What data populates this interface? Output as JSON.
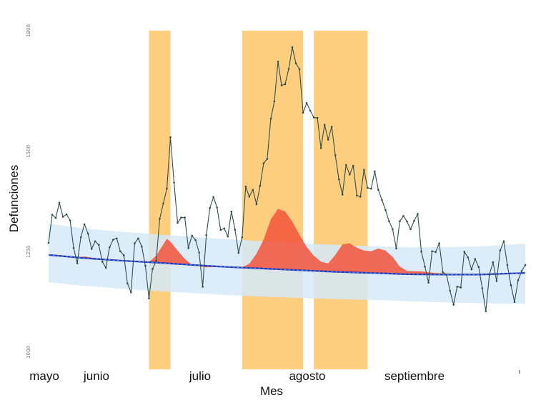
{
  "chart_data": {
    "type": "line",
    "title": "",
    "xlabel": "Mes",
    "ylabel": "Defunciones",
    "ylim": [
      1000,
      1800
    ],
    "yticks": [
      {
        "value": 1000,
        "label": "1000"
      },
      {
        "value": 1250,
        "label": "1250"
      },
      {
        "value": 1500,
        "label": "1500"
      },
      {
        "value": 1800,
        "label": "1800"
      }
    ],
    "xlim": [
      0,
      133
    ],
    "xticks": [
      {
        "day": 0,
        "label": "mayo"
      },
      {
        "day": 15,
        "label": "junio"
      },
      {
        "day": 46,
        "label": "julio"
      },
      {
        "day": 76,
        "label": "agosto"
      },
      {
        "day": 107,
        "label": "septiembre"
      }
    ],
    "highlight_periods": [
      {
        "start": 28,
        "end": 34
      },
      {
        "start": 54,
        "end": 71
      },
      {
        "start": 74,
        "end": 89
      }
    ],
    "colors": {
      "observed": "#2f4f4f",
      "expected": "#2b2bb0",
      "expected_dash": "#3fa9f5",
      "band": "#d6e9f8",
      "excess": "#f2543a",
      "highlight": "#fbc25c"
    },
    "series": [
      {
        "name": "",
        "role": "observed",
        "x": [
          0,
          1,
          2,
          3,
          4,
          5,
          6,
          7,
          8,
          9,
          10,
          11,
          12,
          13,
          14,
          15,
          16,
          17,
          18,
          19,
          20,
          21,
          22,
          23,
          24,
          25,
          26,
          27,
          28,
          29,
          30,
          31,
          32,
          33,
          34,
          35,
          36,
          37,
          38,
          39,
          40,
          41,
          42,
          43,
          44,
          45,
          46,
          47,
          48,
          49,
          50,
          51,
          52,
          53,
          54,
          55,
          56,
          57,
          58,
          59,
          60,
          61,
          62,
          63,
          64,
          65,
          66,
          67,
          68,
          69,
          70,
          71,
          72,
          73,
          74,
          75,
          76,
          77,
          78,
          79,
          80,
          81,
          82,
          83,
          84,
          85,
          86,
          87,
          88,
          89,
          90,
          91,
          92,
          93,
          94,
          95,
          96,
          97,
          98,
          99,
          100,
          101,
          102,
          103,
          104,
          105,
          106,
          107,
          108,
          109,
          110,
          111,
          112,
          113,
          114,
          115,
          116,
          117,
          118,
          119,
          120,
          121,
          122,
          123,
          124,
          125,
          126,
          127,
          128,
          129,
          130,
          131,
          132,
          133
        ],
        "y": [
          1272,
          1342,
          1334,
          1372,
          1337,
          1343,
          1328,
          1259,
          1221,
          1286,
          1318,
          1295,
          1257,
          1276,
          1267,
          1225,
          1210,
          1261,
          1280,
          1283,
          1251,
          1241,
          1171,
          1149,
          1271,
          1283,
          1263,
          1215,
          1134,
          1207,
          1227,
          1332,
          1370,
          1407,
          1535,
          1422,
          1322,
          1335,
          1335,
          1259,
          1290,
          1279,
          1248,
          1163,
          1291,
          1359,
          1386,
          1360,
          1304,
          1308,
          1288,
          1350,
          1305,
          1247,
          1286,
          1412,
          1387,
          1404,
          1368,
          1414,
          1470,
          1481,
          1581,
          1624,
          1723,
          1664,
          1667,
          1705,
          1759,
          1719,
          1704,
          1596,
          1620,
          1601,
          1584,
          1583,
          1508,
          1566,
          1529,
          1561,
          1490,
          1430,
          1392,
          1466,
          1442,
          1464,
          1390,
          1387,
          1454,
          1409,
          1407,
          1450,
          1404,
          1379,
          1354,
          1326,
          1306,
          1258,
          1326,
          1339,
          1325,
          1306,
          1327,
          1344,
          1250,
          1213,
          1173,
          1251,
          1249,
          1271,
          1199,
          1193,
          1153,
          1118,
          1163,
          1161,
          1250,
          1236,
          1206,
          1232,
          1212,
          1159,
          1102,
          1193,
          1224,
          1177,
          1253,
          1276,
          1217,
          1167,
          1125,
          1179,
          1202,
          1217
        ]
      },
      {
        "name": "",
        "role": "expected",
        "x": [
          0,
          10,
          20,
          30,
          40,
          50,
          60,
          70,
          80,
          90,
          100,
          110,
          120,
          133
        ],
        "y": [
          1242,
          1234,
          1228,
          1223,
          1217,
          1212,
          1208,
          1204,
          1200,
          1197,
          1194,
          1193,
          1193,
          1197
        ]
      },
      {
        "name": "",
        "role": "band_upper",
        "x": [
          0,
          10,
          20,
          30,
          40,
          50,
          60,
          70,
          80,
          90,
          100,
          110,
          120,
          133
        ],
        "y": [
          1320,
          1308,
          1300,
          1293,
          1287,
          1281,
          1276,
          1271,
          1267,
          1264,
          1261,
          1261,
          1263,
          1270
        ]
      },
      {
        "name": "",
        "role": "band_lower",
        "x": [
          0,
          10,
          20,
          30,
          40,
          50,
          60,
          70,
          80,
          90,
          100,
          110,
          120,
          133
        ],
        "y": [
          1174,
          1165,
          1158,
          1152,
          1147,
          1142,
          1138,
          1135,
          1132,
          1130,
          1127,
          1124,
          1122,
          1120
        ]
      },
      {
        "name": "",
        "role": "excess",
        "x": [
          0,
          5,
          8,
          10,
          14,
          22,
          26,
          28,
          30,
          32,
          33,
          34,
          36,
          38,
          40,
          44,
          50,
          54,
          56,
          58,
          60,
          62,
          64,
          66,
          68,
          70,
          72,
          74,
          76,
          78,
          80,
          82,
          84,
          86,
          88,
          90,
          92,
          94,
          96,
          98,
          100,
          104,
          108,
          112,
          116,
          120,
          124,
          128,
          133
        ],
        "y": [
          1242,
          1240,
          1236,
          1238,
          1233,
          1226,
          1226,
          1224,
          1240,
          1268,
          1282,
          1275,
          1253,
          1232,
          1217,
          1211,
          1212,
          1211,
          1220,
          1245,
          1280,
          1330,
          1357,
          1350,
          1325,
          1292,
          1262,
          1240,
          1225,
          1221,
          1242,
          1268,
          1271,
          1260,
          1253,
          1251,
          1258,
          1253,
          1237,
          1213,
          1202,
          1201,
          1197,
          1195,
          1193,
          1194,
          1195,
          1196,
          1197
        ]
      }
    ],
    "grid": false,
    "legend": "none"
  }
}
